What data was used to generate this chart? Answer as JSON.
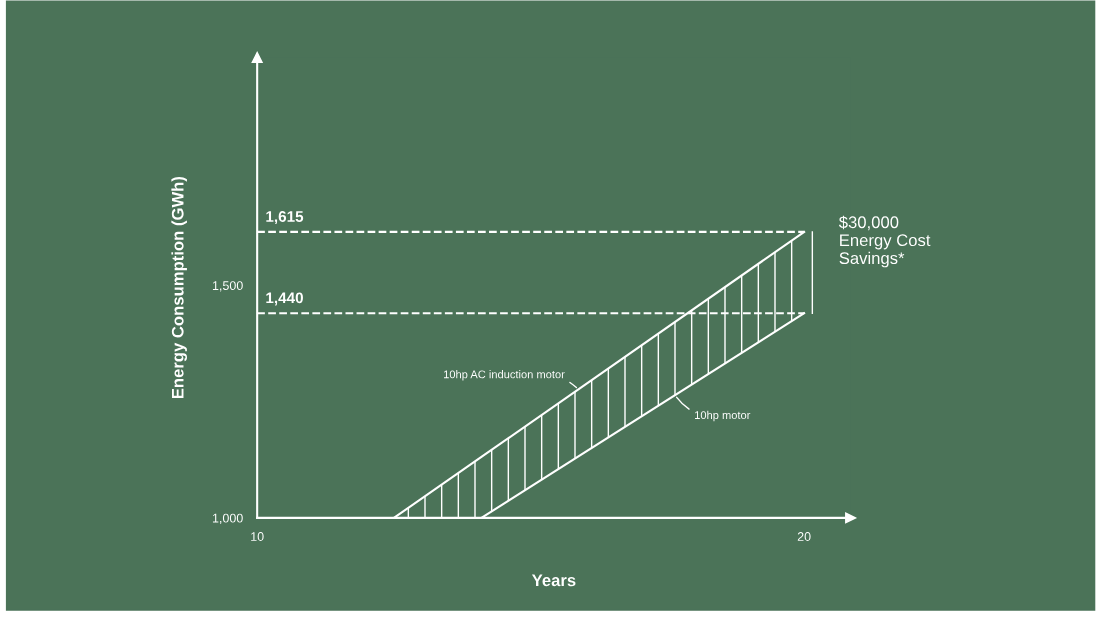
{
  "chart_data": {
    "type": "line",
    "xlabel": "Years",
    "ylabel": "Energy Consumption (GWh)",
    "xlim": [
      10,
      20.85
    ],
    "ylim": [
      1000,
      1990
    ],
    "xticks": [
      10,
      20
    ],
    "yticks": [
      {
        "value": 1000,
        "label": "1,000"
      },
      {
        "value": 1500,
        "label": "1,500"
      }
    ],
    "series": [
      {
        "name": "10hp AC induction motor",
        "color": "#ffffff",
        "x": [
          12.5,
          14.1,
          20
        ],
        "values": [
          1000,
          1131,
          1615
        ],
        "lower": [
          1000,
          1000,
          1440
        ],
        "upper": [
          1000,
          1131,
          1615
        ]
      },
      {
        "name": "10hp motor",
        "color": "#ffffff",
        "x": [
          14.1,
          20
        ],
        "values": [
          1000,
          1440
        ]
      }
    ],
    "ref_lines": [
      {
        "axis": "y",
        "value": 1615,
        "label": "1,615",
        "color": "#ffffff",
        "line_style": "dashed"
      },
      {
        "axis": "y",
        "value": 1440,
        "label": "1,440",
        "color": "#ffffff",
        "line_style": "dashed"
      }
    ],
    "annotations": [
      "$30,000\nEnergy Cost\nSavings*"
    ],
    "grid": false,
    "marker": "none",
    "line_style": "solid"
  }
}
